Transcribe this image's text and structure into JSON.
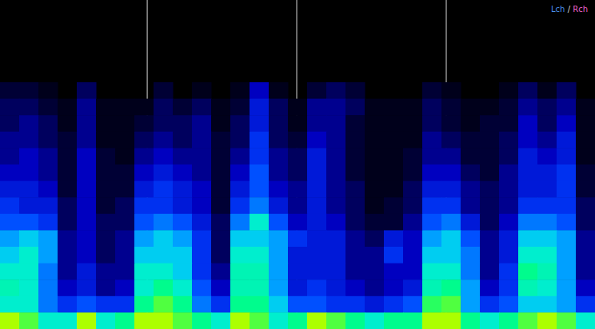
{
  "chart_data": {
    "type": "heatmap",
    "legend": "top-right",
    "tick_labels": false,
    "grid": false,
    "xlim": [
      0,
      31
    ],
    "ylim": [
      0,
      20
    ],
    "markers": [
      7.67,
      15.46,
      23.25
    ],
    "channels": [
      {
        "name": "Lch",
        "color": "#4a8fe8"
      },
      {
        "name": "Rch",
        "color": "#e860c8"
      }
    ],
    "separator": "/",
    "cells": [
      [
        0,
        0,
        0,
        0,
        0,
        0,
        0,
        0,
        0,
        0,
        0,
        0,
        0,
        0,
        0,
        0,
        0,
        0,
        0,
        0,
        0,
        0,
        0,
        0,
        0,
        0,
        0,
        0,
        0,
        0,
        0
      ],
      [
        0,
        0,
        0,
        0,
        0,
        0,
        0,
        0,
        0,
        0,
        0,
        0,
        0,
        0,
        0,
        0,
        0,
        0,
        0,
        0,
        0,
        0,
        0,
        0,
        0,
        0,
        0,
        0,
        0,
        0,
        0
      ],
      [
        0,
        0,
        0,
        0,
        0,
        0,
        0,
        0,
        0,
        0,
        0,
        0,
        0,
        0,
        0,
        0,
        0,
        0,
        0,
        0,
        0,
        0,
        0,
        0,
        0,
        0,
        0,
        0,
        0,
        0,
        0
      ],
      [
        0,
        0,
        0,
        0,
        0,
        0,
        0,
        0,
        0,
        0,
        0,
        0,
        0,
        0,
        0,
        0,
        0,
        0,
        0,
        0,
        0,
        0,
        0,
        0,
        0,
        0,
        0,
        0,
        0,
        0,
        0
      ],
      [
        0,
        0,
        0,
        0,
        0,
        0,
        0,
        0,
        0,
        0,
        0,
        0,
        0,
        0,
        0,
        0,
        0,
        0,
        0,
        0,
        0,
        0,
        0,
        0,
        0,
        0,
        0,
        0,
        0,
        0,
        0
      ],
      [
        0.1,
        0.1,
        0.05,
        0,
        0.15,
        0,
        0,
        0,
        0.1,
        0,
        0.05,
        0,
        0.05,
        0.25,
        0.05,
        0,
        0.1,
        0.15,
        0.1,
        0,
        0,
        0,
        0.1,
        0.05,
        0,
        0,
        0.05,
        0.15,
        0.05,
        0.15,
        0
      ],
      [
        0.15,
        0.15,
        0.1,
        0.05,
        0.2,
        0.05,
        0.05,
        0.05,
        0.15,
        0.1,
        0.15,
        0.05,
        0.1,
        0.3,
        0.15,
        0.05,
        0.2,
        0.2,
        0.15,
        0.05,
        0.05,
        0.05,
        0.15,
        0.1,
        0.05,
        0.05,
        0.1,
        0.2,
        0.15,
        0.2,
        0.05
      ],
      [
        0.15,
        0.2,
        0.15,
        0.05,
        0.2,
        0.05,
        0.05,
        0.1,
        0.15,
        0.15,
        0.2,
        0.05,
        0.15,
        0.3,
        0.15,
        0.05,
        0.2,
        0.2,
        0.1,
        0.05,
        0.05,
        0.05,
        0.15,
        0.1,
        0.05,
        0.1,
        0.1,
        0.25,
        0.15,
        0.25,
        0.05
      ],
      [
        0.2,
        0.2,
        0.15,
        0.1,
        0.2,
        0.05,
        0.05,
        0.15,
        0.2,
        0.15,
        0.2,
        0.1,
        0.15,
        0.35,
        0.15,
        0.1,
        0.25,
        0.2,
        0.1,
        0.05,
        0.05,
        0.05,
        0.2,
        0.15,
        0.1,
        0.1,
        0.15,
        0.25,
        0.2,
        0.3,
        0.05
      ],
      [
        0.2,
        0.25,
        0.2,
        0.1,
        0.25,
        0.1,
        0.05,
        0.2,
        0.25,
        0.2,
        0.2,
        0.1,
        0.2,
        0.35,
        0.2,
        0.15,
        0.3,
        0.2,
        0.1,
        0.05,
        0.05,
        0.1,
        0.2,
        0.2,
        0.1,
        0.1,
        0.15,
        0.3,
        0.25,
        0.3,
        0.05
      ],
      [
        0.25,
        0.25,
        0.2,
        0.1,
        0.25,
        0.1,
        0.1,
        0.25,
        0.3,
        0.25,
        0.2,
        0.1,
        0.25,
        0.4,
        0.2,
        0.15,
        0.3,
        0.2,
        0.1,
        0.05,
        0.05,
        0.1,
        0.25,
        0.25,
        0.15,
        0.1,
        0.2,
        0.3,
        0.3,
        0.35,
        0.1
      ],
      [
        0.3,
        0.3,
        0.25,
        0.1,
        0.25,
        0.1,
        0.1,
        0.3,
        0.35,
        0.3,
        0.25,
        0.1,
        0.3,
        0.4,
        0.25,
        0.2,
        0.3,
        0.2,
        0.15,
        0.05,
        0.05,
        0.15,
        0.3,
        0.3,
        0.2,
        0.15,
        0.2,
        0.3,
        0.3,
        0.35,
        0.1
      ],
      [
        0.35,
        0.3,
        0.3,
        0.15,
        0.25,
        0.1,
        0.15,
        0.35,
        0.35,
        0.3,
        0.25,
        0.1,
        0.35,
        0.45,
        0.3,
        0.2,
        0.3,
        0.2,
        0.15,
        0.05,
        0.1,
        0.15,
        0.35,
        0.35,
        0.2,
        0.15,
        0.2,
        0.35,
        0.35,
        0.35,
        0.15
      ],
      [
        0.4,
        0.4,
        0.35,
        0.15,
        0.25,
        0.15,
        0.15,
        0.4,
        0.45,
        0.4,
        0.3,
        0.15,
        0.45,
        0.6,
        0.4,
        0.25,
        0.3,
        0.25,
        0.15,
        0.1,
        0.1,
        0.2,
        0.4,
        0.45,
        0.3,
        0.15,
        0.25,
        0.45,
        0.45,
        0.4,
        0.15
      ],
      [
        0.5,
        0.55,
        0.5,
        0.2,
        0.25,
        0.15,
        0.2,
        0.5,
        0.55,
        0.5,
        0.35,
        0.15,
        0.55,
        0.55,
        0.5,
        0.35,
        0.3,
        0.3,
        0.2,
        0.15,
        0.3,
        0.25,
        0.5,
        0.55,
        0.4,
        0.2,
        0.3,
        0.55,
        0.55,
        0.5,
        0.2
      ],
      [
        0.55,
        0.6,
        0.5,
        0.2,
        0.25,
        0.15,
        0.2,
        0.55,
        0.55,
        0.55,
        0.35,
        0.15,
        0.6,
        0.6,
        0.5,
        0.3,
        0.3,
        0.3,
        0.2,
        0.2,
        0.35,
        0.25,
        0.55,
        0.55,
        0.45,
        0.2,
        0.3,
        0.6,
        0.6,
        0.5,
        0.2
      ],
      [
        0.6,
        0.6,
        0.45,
        0.2,
        0.3,
        0.2,
        0.2,
        0.6,
        0.6,
        0.55,
        0.35,
        0.2,
        0.62,
        0.62,
        0.5,
        0.3,
        0.3,
        0.3,
        0.2,
        0.2,
        0.25,
        0.25,
        0.6,
        0.6,
        0.45,
        0.2,
        0.35,
        0.65,
        0.62,
        0.5,
        0.2
      ],
      [
        0.62,
        0.6,
        0.45,
        0.25,
        0.3,
        0.2,
        0.25,
        0.6,
        0.65,
        0.6,
        0.4,
        0.25,
        0.62,
        0.62,
        0.5,
        0.3,
        0.35,
        0.3,
        0.25,
        0.2,
        0.25,
        0.3,
        0.62,
        0.65,
        0.5,
        0.25,
        0.35,
        0.62,
        0.6,
        0.5,
        0.25
      ],
      [
        0.6,
        0.6,
        0.45,
        0.35,
        0.4,
        0.35,
        0.35,
        0.65,
        0.7,
        0.65,
        0.45,
        0.35,
        0.65,
        0.65,
        0.55,
        0.4,
        0.4,
        0.35,
        0.35,
        0.3,
        0.35,
        0.4,
        0.68,
        0.7,
        0.5,
        0.35,
        0.4,
        0.55,
        0.55,
        0.5,
        0.35
      ],
      [
        0.75,
        0.7,
        0.6,
        0.6,
        0.75,
        0.6,
        0.65,
        0.75,
        0.75,
        0.7,
        0.65,
        0.6,
        0.75,
        0.7,
        0.6,
        0.65,
        0.75,
        0.7,
        0.65,
        0.6,
        0.65,
        0.65,
        0.75,
        0.75,
        0.65,
        0.6,
        0.65,
        0.7,
        0.75,
        0.7,
        0.6
      ]
    ]
  }
}
